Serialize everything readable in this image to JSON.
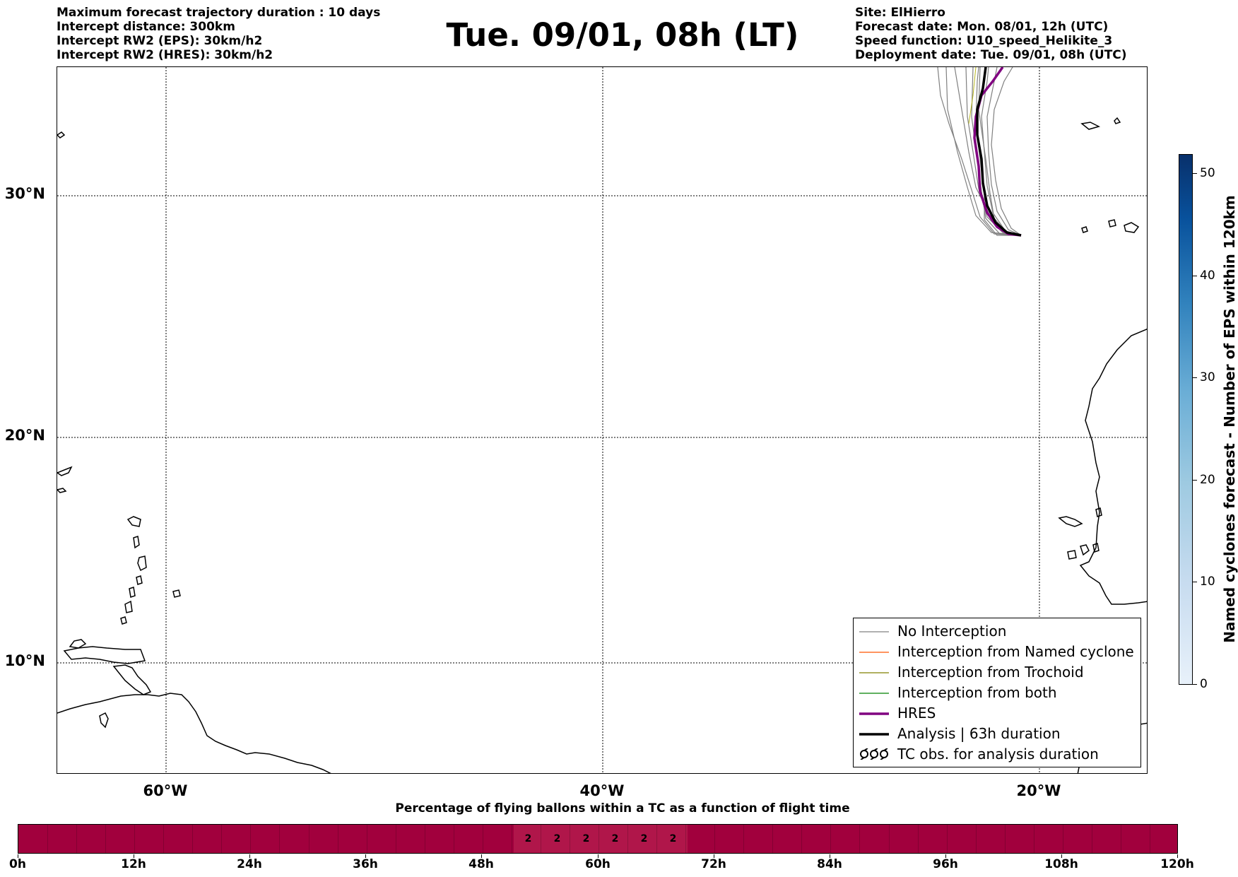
{
  "header": {
    "left_lines": [
      "Maximum forecast trajectory duration : 10 days",
      "Intercept distance: 300km",
      "Intercept RW2 (EPS):  30km/h2",
      "Intercept RW2 (HRES): 30km/h2"
    ],
    "title": "Tue. 09/01, 08h (LT)",
    "right_lines": [
      "Site: ElHierro",
      "Forecast date: Mon. 08/01, 12h (UTC)",
      "Speed function: U10_speed_Helikite_3",
      "Deployment date: Tue. 09/01, 08h (UTC)"
    ]
  },
  "map": {
    "lat_labels": [
      "30°N",
      "20°N",
      "10°N"
    ],
    "lon_labels": [
      "60°W",
      "40°W",
      "20°W"
    ],
    "gridlines": true
  },
  "legend": {
    "items": [
      {
        "label": "No Interception",
        "color": "#808080",
        "symbol": "thin-line"
      },
      {
        "label": "Interception from Named cyclone",
        "color": "#ff5500",
        "symbol": "thin-line"
      },
      {
        "label": "Interception from Trochoid",
        "color": "#808000",
        "symbol": "thin-line"
      },
      {
        "label": "Interception from both",
        "color": "#008000",
        "symbol": "thin-line"
      },
      {
        "label": "HRES",
        "color": "#800080",
        "symbol": "thick-line"
      },
      {
        "label": "Analysis | 63h duration",
        "color": "#000000",
        "symbol": "thick-line"
      },
      {
        "label": "TC obs. for analysis duration",
        "color": "#000000",
        "symbol": "cyclone-icons"
      }
    ]
  },
  "colorbar": {
    "title": "Named cyclones forecast - Number of EPS within 120km",
    "ticks": [
      "0",
      "10",
      "20",
      "30",
      "40",
      "50"
    ],
    "colors": [
      "#e8f1fa",
      "#08306b"
    ]
  },
  "flight_bar": {
    "title": "Percentage of flying ballons within a TC as a function of flight time",
    "tick_labels": [
      "0h",
      "12h",
      "24h",
      "36h",
      "48h",
      "60h",
      "72h",
      "84h",
      "96h",
      "108h",
      "120h"
    ],
    "cell_values": [
      "2",
      "2",
      "2",
      "2",
      "2",
      "2"
    ],
    "bar_color": "#a1003d"
  }
}
